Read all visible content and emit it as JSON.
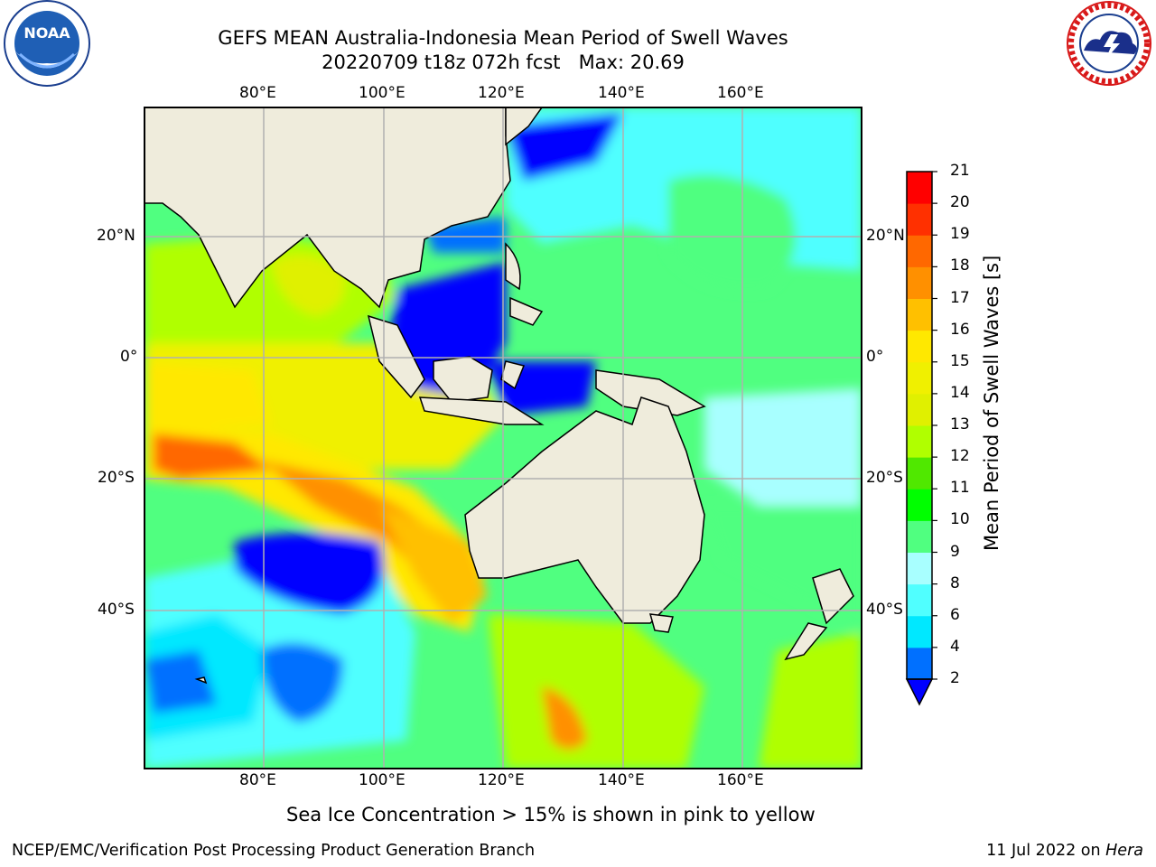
{
  "title": {
    "line1": "GEFS MEAN Australia-Indonesia Mean Period of Swell Waves",
    "line2": "20220709 t18z 072h fcst   Max: 20.69"
  },
  "logos": {
    "left": "noaa-logo",
    "left_text": "NOAA",
    "right": "nws-logo",
    "right_text": "NATIONAL WEATHER SERVICE"
  },
  "map": {
    "lon_ticks_top": [
      "80°E",
      "100°E",
      "120°E",
      "140°E",
      "160°E"
    ],
    "lon_ticks_bottom": [
      "80°E",
      "100°E",
      "120°E",
      "140°E",
      "160°E"
    ],
    "lat_ticks_left": [
      "20°N",
      "0°",
      "20°S",
      "40°S"
    ],
    "lat_ticks_right": [
      "20°N",
      "0°",
      "20°S",
      "40°S"
    ],
    "land_color": "#efecdc",
    "grid_color": "#b0b0b0"
  },
  "colorbar": {
    "label": "Mean Period of Swell Waves [s]",
    "ticks": [
      "2",
      "4",
      "6",
      "8",
      "9",
      "10",
      "11",
      "12",
      "13",
      "14",
      "15",
      "16",
      "17",
      "18",
      "19",
      "20",
      "21"
    ],
    "colors": [
      "#0070ff",
      "#00e8ff",
      "#50ffff",
      "#a8ffff",
      "#50ff80",
      "#00ff00",
      "#50e800",
      "#b0ff00",
      "#e0f000",
      "#f0f000",
      "#ffe800",
      "#ffc000",
      "#ff9000",
      "#ff6800",
      "#ff3000",
      "#ff0000"
    ],
    "extend_color": "#0000ff"
  },
  "note": "Sea Ice Concentration > 15% is shown in pink to yellow",
  "footer": {
    "left": "NCEP/EMC/Verification Post Processing Product Generation Branch",
    "date": "11 Jul 2022 on ",
    "machine": "Hera"
  }
}
